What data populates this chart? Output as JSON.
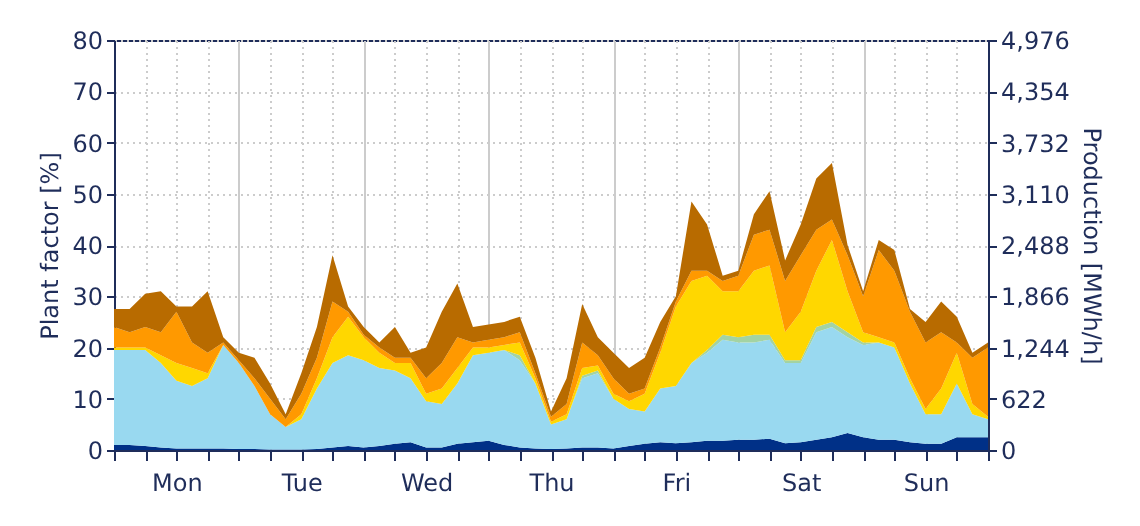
{
  "chart_data": {
    "type": "area",
    "stacked": true,
    "ylabel": "Plant factor [%]",
    "y2label": "Production [MWh/h]",
    "grid": true,
    "categories": [
      null,
      null,
      null,
      null,
      "Mon",
      null,
      null,
      null,
      null,
      null,
      null,
      null,
      "Tue",
      null,
      null,
      null,
      null,
      null,
      null,
      null,
      "Wed",
      null,
      null,
      null,
      null,
      null,
      null,
      null,
      "Thu",
      null,
      null,
      null,
      null,
      null,
      null,
      null,
      "Fri",
      null,
      null,
      null,
      null,
      null,
      null,
      null,
      "Sat",
      null,
      null,
      null,
      null,
      null,
      null,
      null,
      "Sun",
      null,
      null,
      null,
      null
    ],
    "ylim": [
      0,
      80
    ],
    "yticks": [
      0,
      10,
      20,
      30,
      40,
      50,
      60,
      70,
      80
    ],
    "y2lim": [
      0,
      4976
    ],
    "y2ticks": [
      0,
      622,
      {
        "value": 1244,
        "label": "1,244"
      },
      {
        "value": 1866,
        "label": "1,866"
      },
      {
        "value": 2488,
        "label": "2,488"
      },
      {
        "value": 3110,
        "label": "3,110"
      },
      {
        "value": 3732,
        "label": "3,732"
      },
      {
        "value": 4354,
        "label": "4,354"
      },
      {
        "value": 4976,
        "label": "4,976"
      }
    ],
    "series": [
      {
        "color": "#003087",
        "values": [
          1,
          1,
          0.8,
          0.5,
          0.3,
          0.3,
          0.3,
          0.3,
          0.2,
          0.2,
          0.1,
          0.1,
          0.1,
          0.2,
          0.5,
          0.8,
          0.5,
          0.8,
          1.2,
          1.5,
          0.5,
          0.5,
          1.2,
          1.5,
          1.8,
          1,
          0.5,
          0.3,
          0.2,
          0.3,
          0.5,
          0.5,
          0.3,
          0.8,
          1.2,
          1.5,
          1.3,
          1.5,
          1.8,
          1.8,
          2,
          2,
          2.2,
          1.3,
          1.5,
          2,
          2.5,
          3.3,
          2.5,
          2,
          2,
          1.5,
          1.2,
          1.2,
          2.5,
          2.5,
          2.5
        ]
      },
      {
        "color": "#99d9f0",
        "values": [
          18.5,
          18.5,
          18.7,
          16.5,
          13.2,
          12.2,
          13.7,
          20.2,
          16.8,
          12.3,
          6.9,
          4.4,
          5.9,
          11.8,
          16.5,
          17.7,
          17,
          15.2,
          14.3,
          12.5,
          9,
          8.5,
          11.8,
          17,
          17.2,
          18.5,
          17,
          12.7,
          4.8,
          5.7,
          13.5,
          14.5,
          9.7,
          7.2,
          6.3,
          10.5,
          11.2,
          15.5,
          17.2,
          19.7,
          19,
          19,
          19.3,
          15.7,
          15.5,
          21,
          21.5,
          18.7,
          18,
          19,
          18,
          11.5,
          5.8,
          5.8,
          10.5,
          4.5,
          3.5
        ]
      },
      {
        "color": "#a3d3a3",
        "values": [
          0,
          0,
          0,
          0,
          0,
          0,
          0,
          0,
          0,
          0,
          0,
          0,
          0,
          0,
          0,
          0,
          0,
          0,
          0,
          0,
          0,
          0,
          0,
          0,
          0,
          0,
          1,
          0,
          0,
          0,
          0.5,
          0.5,
          0,
          0,
          0,
          0,
          0,
          0,
          0.5,
          1,
          1,
          1.5,
          1,
          0.5,
          0.5,
          1,
          1,
          1,
          0.5,
          0,
          0,
          0,
          0,
          0,
          0,
          0,
          0
        ]
      },
      {
        "color": "#ffd700",
        "values": [
          0.5,
          0.5,
          0.5,
          1.5,
          3.5,
          3.5,
          1,
          0,
          0,
          0,
          0,
          0,
          1,
          2,
          5,
          7.5,
          4.5,
          3,
          1.5,
          3,
          1.5,
          3,
          3,
          1.5,
          1,
          1,
          2.5,
          1,
          0.5,
          1,
          1.5,
          1,
          1,
          1.5,
          3.5,
          7,
          15.5,
          16,
          14.5,
          8.5,
          9,
          12.5,
          13.5,
          5.5,
          9.5,
          11,
          16,
          8,
          2,
          1,
          1,
          1,
          1,
          5,
          6,
          2,
          0.5
        ]
      },
      {
        "color": "#ff9900",
        "values": [
          4,
          3,
          4,
          4.5,
          10,
          5,
          4,
          0.5,
          0.5,
          1.5,
          3,
          1.5,
          4,
          4,
          7,
          1,
          0.5,
          1,
          1,
          1,
          3,
          5,
          6,
          1,
          1.5,
          1.5,
          2,
          1,
          1,
          2,
          5,
          2,
          3,
          1.5,
          1,
          1,
          1,
          2,
          1,
          2,
          3,
          7,
          7,
          10,
          11,
          8,
          4,
          7,
          7,
          17,
          14,
          13,
          13,
          11,
          2,
          9,
          13.5
        ]
      },
      {
        "color": "#b86b00",
        "values": [
          3.5,
          4.5,
          6.5,
          8,
          1,
          7,
          12,
          1,
          1.5,
          4,
          3,
          1,
          4,
          6,
          9,
          1,
          1.5,
          1,
          6,
          1,
          6,
          10,
          10.5,
          3,
          3,
          3,
          3,
          3,
          1,
          5,
          7.5,
          3.5,
          5,
          5,
          6,
          5,
          1,
          13.5,
          9,
          1,
          1,
          4,
          7.5,
          4,
          6,
          10,
          11,
          2,
          1,
          2,
          4,
          0.5,
          4,
          6,
          5,
          1,
          1
        ]
      }
    ]
  }
}
